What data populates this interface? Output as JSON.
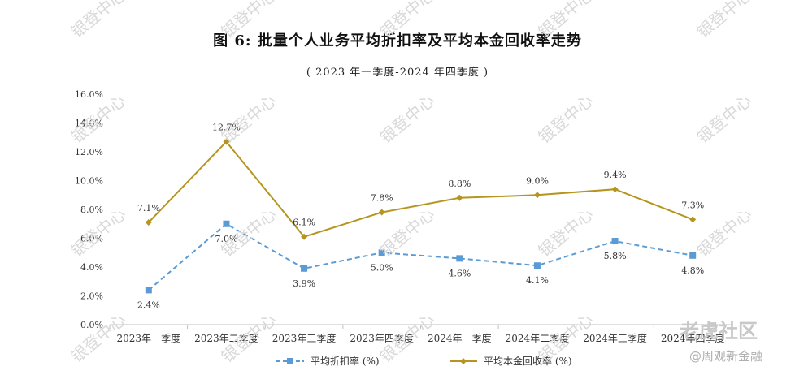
{
  "title": "图 6:  批量个人业务平均折扣率及平均本金回收率走势",
  "subtitle": "( 2023 年一季度-2024 年四季度 )",
  "watermark": "银登中心",
  "footer": {
    "logo_text": "老虎社区",
    "source_text": "@周观新金融"
  },
  "colors": {
    "discount": "#5B9BD5",
    "recovery": "#B5951F",
    "axis": "#bfbfbf",
    "text": "#333333"
  },
  "chart_data": {
    "type": "line",
    "title": "图 6:  批量个人业务平均折扣率及平均本金回收率走势",
    "subtitle": "( 2023 年一季度-2024 年四季度 )",
    "categories": [
      "2023年一季度",
      "2023年二季度",
      "2023年三季度",
      "2023年四季度",
      "2024年一季度",
      "2024年二季度",
      "2024年三季度",
      "2024年四季度"
    ],
    "yticks": [
      "0.0%",
      "2.0%",
      "4.0%",
      "6.0%",
      "8.0%",
      "10.0%",
      "12.0%",
      "14.0%",
      "16.0%"
    ],
    "ylim": [
      0,
      16
    ],
    "grid": false,
    "legend_position": "bottom",
    "series": [
      {
        "name": "平均折扣率 (%)",
        "values": [
          2.4,
          7.0,
          3.9,
          5.0,
          4.6,
          4.1,
          5.8,
          4.8
        ],
        "labels": [
          "2.4%",
          "7.0%",
          "3.9%",
          "5.0%",
          "4.6%",
          "4.1%",
          "5.8%",
          "4.8%"
        ],
        "style": "dashed",
        "marker": "square",
        "color": "#5B9BD5"
      },
      {
        "name": "平均本金回收率 (%)",
        "values": [
          7.1,
          12.7,
          6.1,
          7.8,
          8.8,
          9.0,
          9.4,
          7.3
        ],
        "labels": [
          "7.1%",
          "12.7%",
          "6.1%",
          "7.8%",
          "8.8%",
          "9.0%",
          "9.4%",
          "7.3%"
        ],
        "style": "solid",
        "marker": "diamond",
        "color": "#B5951F"
      }
    ]
  }
}
